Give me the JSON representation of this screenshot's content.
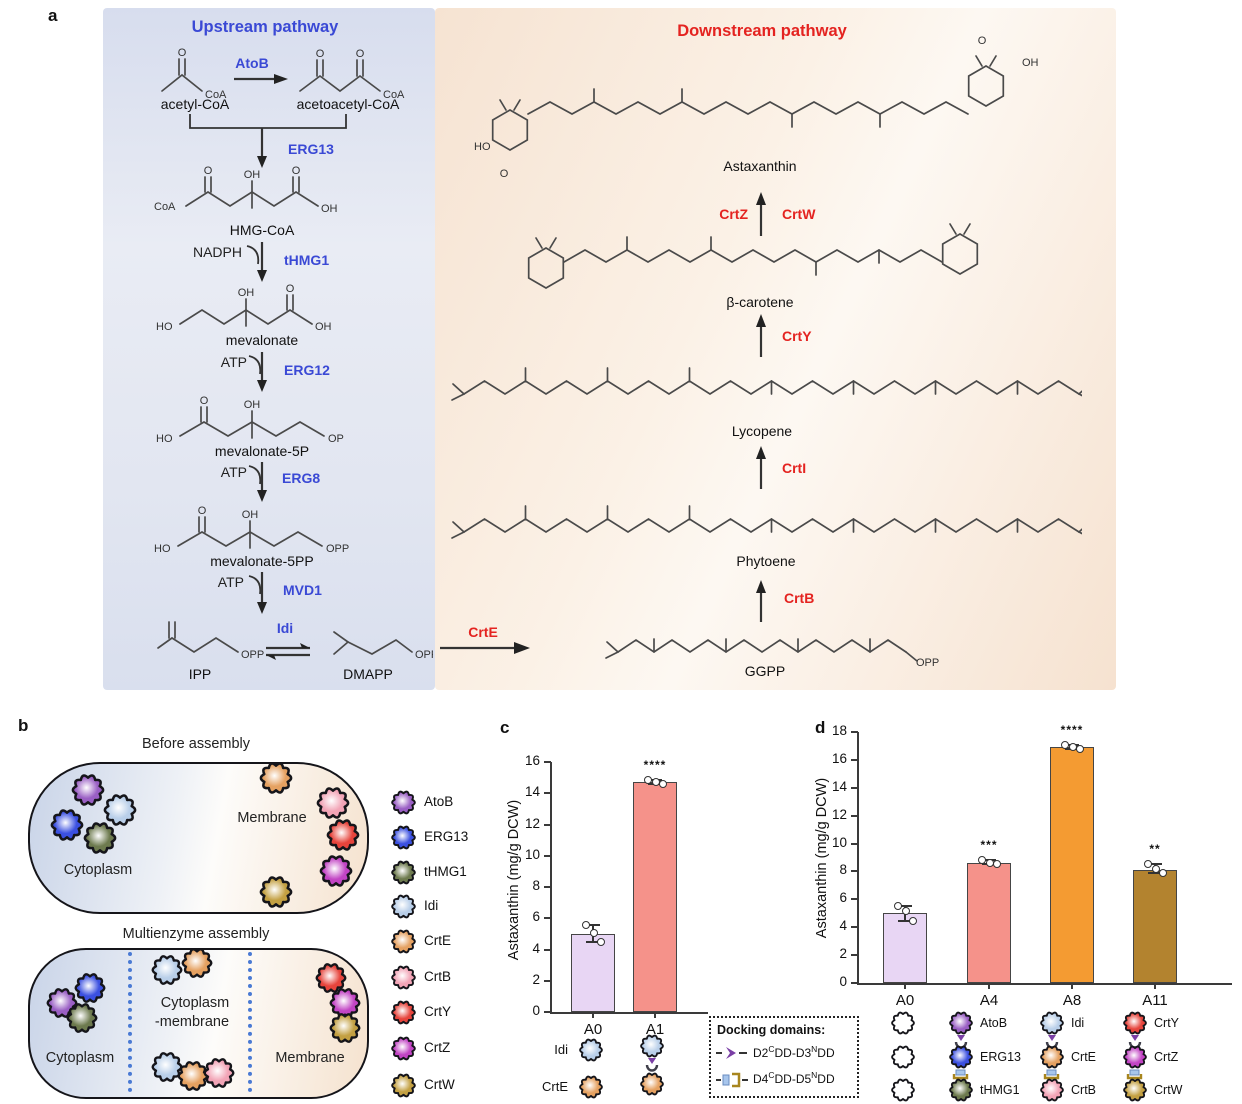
{
  "panels": {
    "a": "a",
    "b": "b",
    "c": "c",
    "d": "d"
  },
  "colors": {
    "upstream_accent": "#3a49d5",
    "downstream_accent": "#e42320",
    "enzymes": {
      "AtoB": "#9a5fc4",
      "ERG13": "#3b50e0",
      "tHMG1": "#6d7a4e",
      "Idi": "#b9cfe9",
      "CrtE": "#e5a161",
      "CrtB": "#f2a4b6",
      "CrtY": "#e6443c",
      "CrtZ": "#c244c4",
      "CrtW": "#c3a042",
      "empty": "#ffffff"
    }
  },
  "upstream": {
    "title": "Upstream pathway",
    "enzymes": {
      "e1": "AtoB",
      "e2": "ERG13",
      "e3": "tHMG1",
      "e4": "ERG12",
      "e5": "ERG8",
      "e6": "MVD1",
      "e7": "Idi"
    },
    "cofactors": {
      "nadph": "NADPH",
      "atp": "ATP"
    },
    "molecules": {
      "m1": "acetyl-CoA",
      "m2": "acetoacetyl-CoA",
      "m3": "HMG-CoA",
      "m4": "mevalonate",
      "m5": "mevalonate-5P",
      "m6": "mevalonate-5PP",
      "m7": "IPP",
      "m8": "DMAPP"
    },
    "atoms": {
      "o": "O",
      "oh": "OH",
      "ho": "HO",
      "coa": "CoA",
      "op": "OP",
      "opp": "OPP"
    }
  },
  "downstream": {
    "title": "Downstream pathway",
    "enzymes": {
      "crtE": "CrtE",
      "crtB": "CrtB",
      "crtI": "CrtI",
      "crtY": "CrtY",
      "crtZ": "CrtZ",
      "crtW": "CrtW"
    },
    "molecules": {
      "ggpp": "GGPP",
      "phytoene": "Phytoene",
      "lycopene": "Lycopene",
      "bcarotene": "β-carotene",
      "astaxanthin": "Astaxanthin"
    },
    "atoms": {
      "o": "O",
      "oh": "OH",
      "ho": "HO",
      "opp": "OPP"
    }
  },
  "panel_b": {
    "before_title": "Before assembly",
    "after_title": "Multienzyme assembly",
    "cytoplasm": "Cytoplasm",
    "membrane": "Membrane",
    "cyto_mem_line1": "Cytoplasm",
    "cyto_mem_line2": "-membrane",
    "legend": [
      "AtoB",
      "ERG13",
      "tHMG1",
      "Idi",
      "CrtE",
      "CrtB",
      "CrtY",
      "CrtZ",
      "CrtW"
    ]
  },
  "chart_data": [
    {
      "type": "bar",
      "categories": [
        "A0",
        "A1"
      ],
      "values": [
        5.0,
        14.7
      ],
      "points": [
        [
          5.6,
          5.05,
          4.45
        ],
        [
          14.85,
          14.7,
          14.6
        ]
      ],
      "significance": [
        "",
        "****"
      ],
      "bar_colors": [
        "#e8d6f4",
        "#f5928a"
      ],
      "ylabel": "Astaxanthin (mg/g DCW)",
      "ylim": [
        0,
        16
      ],
      "ytick_step": 2,
      "grid": "off",
      "legend_position": "none"
    },
    {
      "type": "bar",
      "categories": [
        "A0",
        "A4",
        "A8",
        "A11"
      ],
      "values": [
        5.0,
        8.6,
        16.9,
        8.1
      ],
      "points": [
        [
          5.5,
          5.15,
          4.45
        ],
        [
          8.85,
          8.6,
          8.5
        ],
        [
          17.1,
          16.9,
          16.75
        ],
        [
          8.5,
          8.15,
          7.9
        ]
      ],
      "significance": [
        "",
        "***",
        "****",
        "**"
      ],
      "bar_colors": [
        "#e8d6f4",
        "#f5928a",
        "#f49b32",
        "#b3832f"
      ],
      "ylabel": "Astaxanthin (mg/g DCW)",
      "ylim": [
        0,
        18
      ],
      "ytick_step": 2,
      "grid": "off",
      "legend_position": "none"
    }
  ],
  "panel_c_icons": {
    "rows": [
      "Idi",
      "CrtE"
    ]
  },
  "docking": {
    "title": "Docking domains:",
    "rows": [
      {
        "a": "D2",
        "as": "C",
        "b": "DD-D3",
        "bs": "N",
        "c": "DD"
      },
      {
        "a": "D4",
        "as": "C",
        "b": "DD-D5",
        "bs": "N",
        "c": "DD"
      }
    ]
  },
  "panel_d_icons": {
    "a4": [
      "AtoB",
      "ERG13",
      "tHMG1"
    ],
    "a8": [
      "Idi",
      "CrtE",
      "CrtB"
    ],
    "a11": [
      "CrtY",
      "CrtZ",
      "CrtW"
    ]
  }
}
